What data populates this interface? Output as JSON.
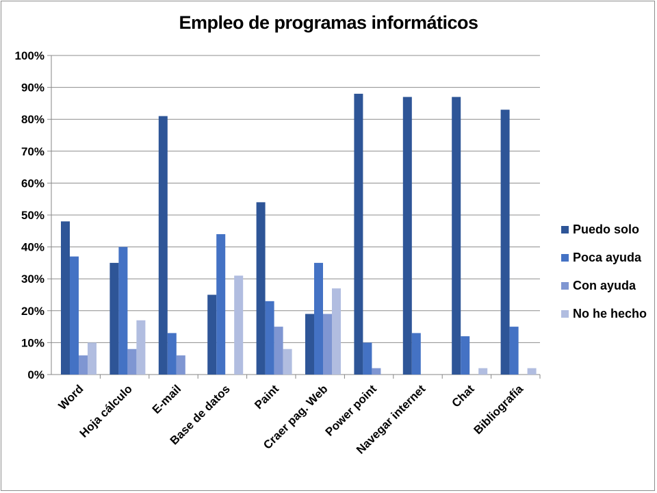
{
  "chart_data": {
    "type": "bar",
    "title": "Empleo de programas informáticos",
    "categories": [
      "Word",
      "Hoja cálculo",
      "E-mail",
      "Base de datos",
      "Paint",
      "Craer pag. Web",
      "Power point",
      "Navegar internet",
      "Chat",
      "Bibliografía"
    ],
    "series": [
      {
        "name": "Puedo solo",
        "color": "#2e5597",
        "values": [
          48,
          35,
          81,
          25,
          54,
          19,
          88,
          87,
          87,
          83
        ]
      },
      {
        "name": "Poca ayuda",
        "color": "#4472c4",
        "values": [
          37,
          40,
          13,
          44,
          23,
          35,
          10,
          13,
          12,
          15
        ]
      },
      {
        "name": "Con ayuda",
        "color": "#7f96d2",
        "values": [
          6,
          8,
          6,
          0,
          15,
          19,
          2,
          0,
          0,
          0
        ]
      },
      {
        "name": "No he hecho",
        "color": "#b1bde0",
        "values": [
          10,
          17,
          0,
          31,
          8,
          27,
          0,
          0,
          2,
          2
        ]
      }
    ],
    "yticks": [
      "0%",
      "10%",
      "20%",
      "30%",
      "40%",
      "50%",
      "60%",
      "70%",
      "80%",
      "90%",
      "100%"
    ],
    "ylim": [
      0,
      100
    ],
    "xlabel": "",
    "ylabel": "",
    "grid": true,
    "legend_position": "right"
  }
}
